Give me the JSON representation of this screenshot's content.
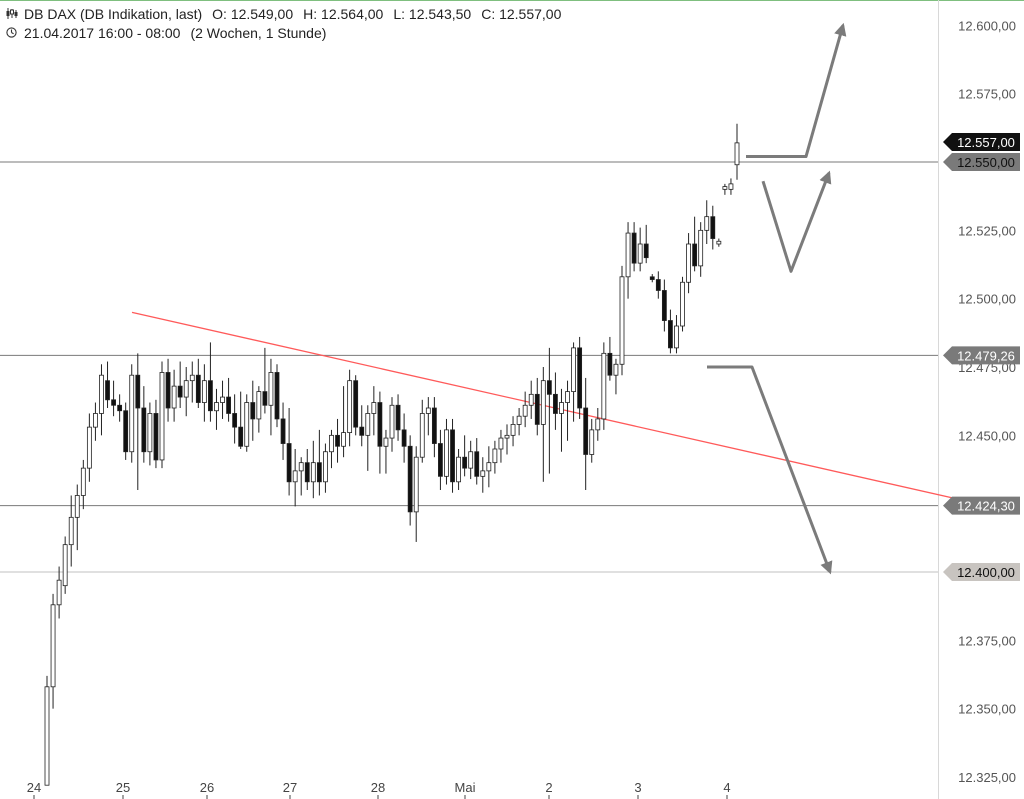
{
  "header": {
    "instrument": "DB DAX (DB Indikation, last)",
    "open_label": "O:",
    "open": "12.549,00",
    "high_label": "H:",
    "high": "12.564,00",
    "low_label": "L:",
    "low": "12.543,50",
    "close_label": "C:",
    "close": "12.557,00",
    "period": "21.04.2017 16:00 - 08:00",
    "range": "(2 Wochen, 1 Stunde)",
    "instrument_icon": "candles-icon",
    "period_icon": "clock-icon"
  },
  "chart_data": {
    "type": "candlestick",
    "ylim": [
      12320,
      12615
    ],
    "y_ticks": [
      "12.325,00",
      "12.350,00",
      "12.375,00",
      "12.400,00",
      "12.450,00",
      "12.475,00",
      "12.500,00",
      "12.525,00",
      "12.575,00",
      "12.600,00"
    ],
    "y_tick_values": [
      12325,
      12350,
      12375,
      12400,
      12450,
      12475,
      12500,
      12525,
      12575,
      12600
    ],
    "x_ticks": [
      "24",
      "25",
      "26",
      "27",
      "28",
      "Mai",
      "2",
      "3",
      "4"
    ],
    "levels": [
      {
        "label": "12.557,00",
        "value": 12557,
        "line": false,
        "tag_bg": "#111111",
        "tag_fg": "#ffffff"
      },
      {
        "label": "12.550,00",
        "value": 12550,
        "line": true,
        "tag_bg": "#7a7a7a",
        "tag_fg": "#111111"
      },
      {
        "label": "12.479,26",
        "value": 12479.26,
        "line": true,
        "tag_bg": "#7a7a7a",
        "tag_fg": "#ffffff"
      },
      {
        "label": "12.424,30",
        "value": 12424.3,
        "line": true,
        "tag_bg": "#7a7a7a",
        "tag_fg": "#ffffff"
      },
      {
        "label": "12.400,00",
        "value": 12400,
        "line": true,
        "tag_bg": "#c8c4c0",
        "tag_fg": "#111111"
      }
    ],
    "trendline": {
      "start_value": 12495,
      "end_value": 12424,
      "color": "#ff5a5a"
    },
    "scenario_arrows": {
      "up": [
        12552,
        12552,
        12600
      ],
      "pullback": [
        12543,
        12510,
        12546
      ],
      "down": [
        12475,
        12475,
        12400
      ],
      "color": "#7b7b7b"
    },
    "candles": [
      [
        12322,
        12362,
        12322,
        12358
      ],
      [
        12358,
        12392,
        12350,
        12388
      ],
      [
        12388,
        12402,
        12383,
        12397
      ],
      [
        12395,
        12413,
        12392,
        12410
      ],
      [
        12410,
        12428,
        12402,
        12420
      ],
      [
        12420,
        12432,
        12408,
        12428
      ],
      [
        12428,
        12441,
        12423,
        12438
      ],
      [
        12438,
        12458,
        12433,
        12453
      ],
      [
        12453,
        12462,
        12448,
        12458
      ],
      [
        12458,
        12476,
        12450,
        12472
      ],
      [
        12470,
        12477,
        12460,
        12463
      ],
      [
        12463,
        12470,
        12457,
        12461
      ],
      [
        12461,
        12465,
        12455,
        12459
      ],
      [
        12459,
        12462,
        12441,
        12444
      ],
      [
        12444,
        12476,
        12440,
        12472
      ],
      [
        12472,
        12480,
        12430,
        12460
      ],
      [
        12460,
        12468,
        12440,
        12444
      ],
      [
        12444,
        12462,
        12439,
        12458
      ],
      [
        12458,
        12463,
        12438,
        12441
      ],
      [
        12441,
        12477,
        12438,
        12473
      ],
      [
        12473,
        12478,
        12455,
        12460
      ],
      [
        12460,
        12474,
        12455,
        12468
      ],
      [
        12468,
        12477,
        12460,
        12464
      ],
      [
        12464,
        12475,
        12457,
        12470
      ],
      [
        12470,
        12477,
        12462,
        12472
      ],
      [
        12472,
        12478,
        12460,
        12462
      ],
      [
        12462,
        12476,
        12455,
        12470
      ],
      [
        12470,
        12484,
        12455,
        12459
      ],
      [
        12459,
        12467,
        12452,
        12462
      ],
      [
        12462,
        12470,
        12456,
        12464
      ],
      [
        12464,
        12471,
        12455,
        12458
      ],
      [
        12458,
        12465,
        12447,
        12453
      ],
      [
        12453,
        12466,
        12445,
        12446
      ],
      [
        12446,
        12465,
        12444,
        12462
      ],
      [
        12462,
        12470,
        12448,
        12456
      ],
      [
        12456,
        12468,
        12451,
        12466
      ],
      [
        12466,
        12482,
        12458,
        12461
      ],
      [
        12461,
        12478,
        12450,
        12473
      ],
      [
        12473,
        12476,
        12453,
        12456
      ],
      [
        12456,
        12462,
        12441,
        12447
      ],
      [
        12447,
        12460,
        12428,
        12433
      ],
      [
        12433,
        12445,
        12424,
        12437
      ],
      [
        12437,
        12442,
        12428,
        12440
      ],
      [
        12440,
        12445,
        12430,
        12433
      ],
      [
        12433,
        12448,
        12427,
        12440
      ],
      [
        12440,
        12452,
        12428,
        12433
      ],
      [
        12433,
        12447,
        12429,
        12444
      ],
      [
        12444,
        12452,
        12438,
        12450
      ],
      [
        12450,
        12456,
        12440,
        12446
      ],
      [
        12446,
        12468,
        12442,
        12451
      ],
      [
        12451,
        12474,
        12446,
        12470
      ],
      [
        12470,
        12472,
        12450,
        12453
      ],
      [
        12453,
        12461,
        12446,
        12450
      ],
      [
        12450,
        12461,
        12437,
        12458
      ],
      [
        12458,
        12468,
        12450,
        12462
      ],
      [
        12462,
        12466,
        12436,
        12446
      ],
      [
        12446,
        12452,
        12436,
        12449
      ],
      [
        12449,
        12464,
        12444,
        12461
      ],
      [
        12461,
        12465,
        12448,
        12452
      ],
      [
        12452,
        12458,
        12440,
        12446
      ],
      [
        12446,
        12450,
        12417,
        12422
      ],
      [
        12422,
        12446,
        12411,
        12442
      ],
      [
        12442,
        12463,
        12440,
        12458
      ],
      [
        12458,
        12464,
        12450,
        12460
      ],
      [
        12460,
        12464,
        12442,
        12447
      ],
      [
        12447,
        12452,
        12430,
        12435
      ],
      [
        12435,
        12456,
        12432,
        12452
      ],
      [
        12452,
        12456,
        12429,
        12433
      ],
      [
        12433,
        12445,
        12430,
        12442
      ],
      [
        12442,
        12450,
        12435,
        12438
      ],
      [
        12438,
        12448,
        12434,
        12444
      ],
      [
        12444,
        12449,
        12432,
        12435
      ],
      [
        12435,
        12442,
        12429,
        12437
      ],
      [
        12437,
        12446,
        12431,
        12440
      ],
      [
        12440,
        12448,
        12436,
        12445
      ],
      [
        12445,
        12452,
        12440,
        12449
      ],
      [
        12449,
        12454,
        12443,
        12450
      ],
      [
        12450,
        12457,
        12446,
        12454
      ],
      [
        12454,
        12460,
        12450,
        12457
      ],
      [
        12457,
        12466,
        12453,
        12461
      ],
      [
        12461,
        12470,
        12456,
        12465
      ],
      [
        12465,
        12471,
        12450,
        12454
      ],
      [
        12454,
        12475,
        12433,
        12470
      ],
      [
        12470,
        12482,
        12436,
        12465
      ],
      [
        12465,
        12473,
        12452,
        12458
      ],
      [
        12458,
        12467,
        12444,
        12462
      ],
      [
        12462,
        12470,
        12448,
        12466
      ],
      [
        12466,
        12484,
        12455,
        12482
      ],
      [
        12482,
        12486,
        12456,
        12460
      ],
      [
        12460,
        12471,
        12430,
        12443
      ],
      [
        12443,
        12456,
        12440,
        12452
      ],
      [
        12452,
        12460,
        12448,
        12456
      ],
      [
        12456,
        12484,
        12452,
        12480
      ],
      [
        12480,
        12486,
        12470,
        12472
      ],
      [
        12472,
        12478,
        12465,
        12476
      ],
      [
        12476,
        12512,
        12472,
        12508
      ],
      [
        12508,
        12528,
        12500,
        12524
      ],
      [
        12524,
        12528,
        12510,
        12513
      ],
      [
        12513,
        12526,
        12510,
        12520
      ],
      [
        12520,
        12527,
        12513,
        12515
      ],
      [
        12508,
        12509,
        12506,
        12507
      ],
      [
        12507,
        12510,
        12500,
        12503
      ],
      [
        12503,
        12507,
        12488,
        12492
      ],
      [
        12492,
        12496,
        12480,
        12482
      ],
      [
        12482,
        12494,
        12480,
        12490
      ],
      [
        12490,
        12508,
        12488,
        12506
      ],
      [
        12506,
        12524,
        12502,
        12520
      ],
      [
        12520,
        12530,
        12510,
        12512
      ],
      [
        12512,
        12528,
        12508,
        12525
      ],
      [
        12525,
        12536,
        12520,
        12530
      ],
      [
        12530,
        12534,
        12518,
        12522
      ],
      [
        12520,
        12522,
        12519,
        12521
      ],
      [
        12540,
        12542,
        12538,
        12541
      ],
      [
        12540,
        12544,
        12538,
        12542
      ],
      [
        12549,
        12564,
        12543.5,
        12557
      ]
    ]
  }
}
